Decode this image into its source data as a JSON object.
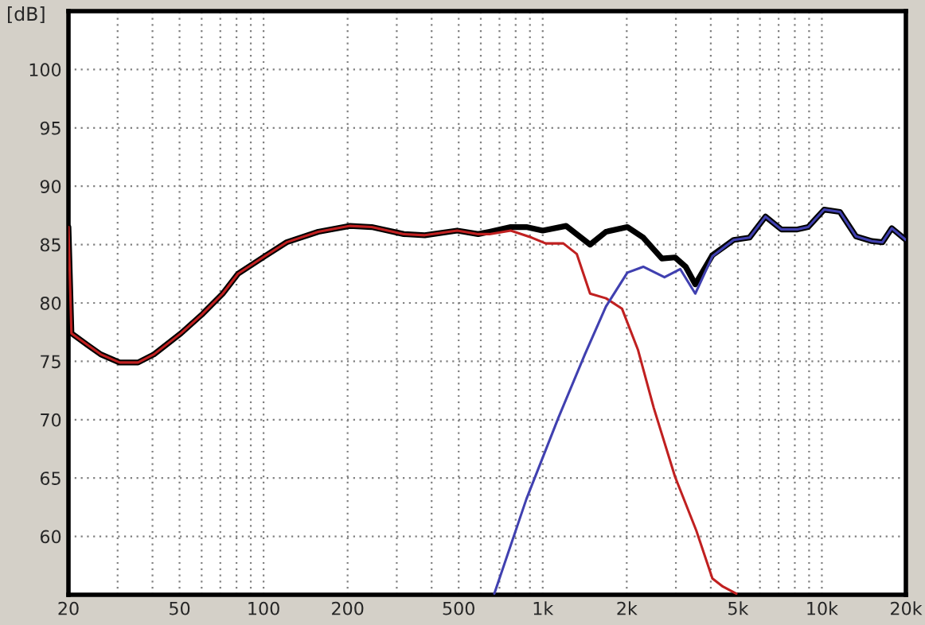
{
  "chart_data": {
    "type": "line",
    "ylabel": "[dB]",
    "log": "x",
    "grid": true,
    "legend": false,
    "marker": "none",
    "line_style": "solid",
    "xlim": [
      20,
      20000
    ],
    "ylim": [
      55,
      105
    ],
    "xticks": [
      20,
      {
        "value": 30,
        "label": null
      },
      {
        "value": 40,
        "label": null
      },
      50,
      {
        "value": 60,
        "label": null
      },
      {
        "value": 70,
        "label": null
      },
      {
        "value": 80,
        "label": null
      },
      {
        "value": 90,
        "label": null
      },
      100,
      200,
      {
        "value": 300,
        "label": null
      },
      {
        "value": 400,
        "label": null
      },
      500,
      {
        "value": 600,
        "label": null
      },
      {
        "value": 700,
        "label": null
      },
      {
        "value": 800,
        "label": null
      },
      {
        "value": 900,
        "label": null
      },
      {
        "value": 1000,
        "label": "1k"
      },
      {
        "value": 2000,
        "label": "2k"
      },
      {
        "value": 3000,
        "label": null
      },
      {
        "value": 4000,
        "label": null
      },
      {
        "value": 5000,
        "label": "5k"
      },
      {
        "value": 6000,
        "label": null
      },
      {
        "value": 7000,
        "label": null
      },
      {
        "value": 8000,
        "label": null
      },
      {
        "value": 9000,
        "label": null
      },
      {
        "value": 10000,
        "label": "10k"
      },
      {
        "value": 20000,
        "label": "20k"
      }
    ],
    "yticks": [
      60,
      65,
      70,
      75,
      80,
      85,
      90,
      95,
      100
    ],
    "series": [
      {
        "color": "#000000",
        "x": [
          20,
          20.5,
          23.4,
          26.1,
          30.5,
          35.5,
          40.5,
          50.6,
          60.1,
          71.4,
          81,
          101,
          121,
          157,
          204,
          244,
          318,
          378,
          494,
          587,
          645,
          768,
          874,
          1000,
          1213,
          1478,
          1685,
          2010,
          2292,
          2673,
          2980,
          3253,
          3520,
          4054,
          4830,
          5508,
          6280,
          7160,
          8170,
          8930,
          10190,
          11610,
          13250,
          15100,
          16480,
          17800,
          20000
        ],
        "values": [
          86.5,
          77.4,
          76.4,
          75.6,
          74.9,
          74.9,
          75.6,
          77.4,
          79.0,
          80.8,
          82.5,
          84.0,
          85.2,
          86.1,
          86.6,
          86.5,
          85.9,
          85.8,
          86.2,
          85.9,
          86.1,
          86.5,
          86.5,
          86.2,
          86.6,
          85.0,
          86.1,
          86.5,
          85.6,
          83.8,
          83.9,
          83.1,
          81.6,
          84.1,
          85.4,
          85.6,
          87.4,
          86.3,
          86.3,
          86.5,
          88.0,
          87.8,
          85.7,
          85.3,
          85.2,
          86.4,
          85.4
        ]
      },
      {
        "color": "#c02020",
        "x": [
          20,
          20.5,
          23.4,
          26.1,
          30.5,
          35.5,
          40.5,
          50.6,
          60.1,
          71.4,
          81,
          101,
          121,
          157,
          204,
          244,
          318,
          378,
          494,
          587,
          645,
          768,
          913,
          1025,
          1186,
          1324,
          1478,
          1685,
          1924,
          2193,
          2500,
          2980,
          3550,
          4054,
          4420,
          4940
        ],
        "values": [
          86.5,
          77.4,
          76.4,
          75.6,
          74.9,
          74.9,
          75.6,
          77.4,
          79.0,
          80.8,
          82.5,
          84.0,
          85.2,
          86.1,
          86.6,
          86.5,
          85.9,
          85.8,
          86.2,
          85.9,
          85.9,
          86.2,
          85.6,
          85.1,
          85.1,
          84.2,
          80.8,
          80.4,
          79.5,
          76.0,
          71.0,
          65.1,
          60.5,
          56.4,
          55.7,
          55.1
        ]
      },
      {
        "color": "#4040b0",
        "x": [
          671,
          874,
          1135,
          1416,
          1685,
          2010,
          2292,
          2730,
          3110,
          3520,
          4054,
          4830,
          5508,
          6280,
          7160,
          8170,
          8930,
          10190,
          11610,
          13250,
          15100,
          16480,
          17800,
          20000
        ],
        "values": [
          55.1,
          63.2,
          70.1,
          75.6,
          79.7,
          82.6,
          83.1,
          82.2,
          82.9,
          80.8,
          84.0,
          85.4,
          85.6,
          87.4,
          86.3,
          86.3,
          86.5,
          88.0,
          87.8,
          85.7,
          85.3,
          85.2,
          86.4,
          85.4
        ]
      }
    ]
  }
}
